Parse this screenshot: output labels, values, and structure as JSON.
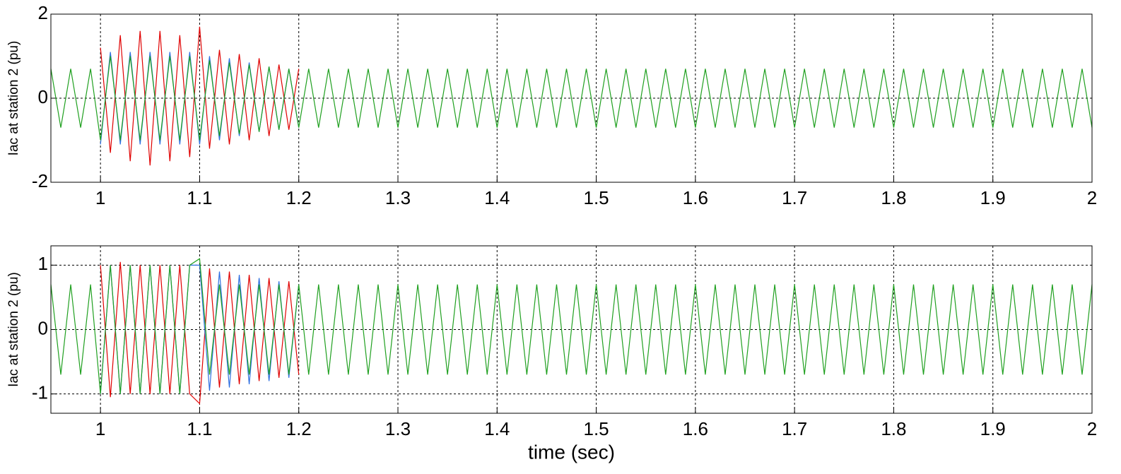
{
  "chart_data": [
    {
      "type": "line",
      "ylabel": "Iac at station 2 (pu)",
      "xlim": [
        0.95,
        2.0
      ],
      "xticks": [
        1,
        1.1,
        1.2,
        1.3,
        1.4,
        1.5,
        1.6,
        1.7,
        1.8,
        1.9,
        2
      ],
      "ylim": [
        -2,
        2
      ],
      "yticks": [
        -2,
        0,
        2
      ],
      "grid": true,
      "x": [
        0.95,
        0.96,
        0.97,
        0.98,
        0.99,
        1.0,
        1.01,
        1.02,
        1.03,
        1.04,
        1.05,
        1.06,
        1.07,
        1.08,
        1.09,
        1.1,
        1.11,
        1.12,
        1.13,
        1.14,
        1.15,
        1.16,
        1.17,
        1.18,
        1.19,
        1.2,
        1.21,
        1.22,
        1.23,
        1.24,
        1.25,
        1.26,
        1.27,
        1.28,
        1.29,
        1.3,
        1.31,
        1.32,
        1.33,
        1.34,
        1.35,
        1.36,
        1.37,
        1.38,
        1.39,
        1.4,
        1.41,
        1.42,
        1.43,
        1.44,
        1.45,
        1.46,
        1.47,
        1.48,
        1.49,
        1.5,
        1.51,
        1.52,
        1.53,
        1.54,
        1.55,
        1.56,
        1.57,
        1.58,
        1.59,
        1.6,
        1.61,
        1.62,
        1.63,
        1.64,
        1.65,
        1.66,
        1.67,
        1.68,
        1.69,
        1.7,
        1.71,
        1.72,
        1.73,
        1.74,
        1.75,
        1.76,
        1.77,
        1.78,
        1.79,
        1.8,
        1.81,
        1.82,
        1.83,
        1.84,
        1.85,
        1.86,
        1.87,
        1.88,
        1.89,
        1.9,
        1.91,
        1.92,
        1.93,
        1.94,
        1.95,
        1.96,
        1.97,
        1.98,
        1.99,
        2.0
      ],
      "series": [
        {
          "color": "#e00000",
          "x": [
            1.0,
            1.01,
            1.02,
            1.03,
            1.04,
            1.05,
            1.06,
            1.07,
            1.08,
            1.09,
            1.1,
            1.11,
            1.12,
            1.13,
            1.14,
            1.15,
            1.16,
            1.17,
            1.18,
            1.19,
            1.2
          ],
          "values": [
            1.2,
            -1.3,
            1.5,
            -1.5,
            1.6,
            -1.6,
            1.6,
            -1.5,
            1.5,
            -1.4,
            1.7,
            -1.2,
            1.15,
            -1.1,
            1.05,
            -1.0,
            0.95,
            -0.9,
            0.8,
            -0.75,
            0.7
          ]
        },
        {
          "color": "#3070e0",
          "x": [
            1.0,
            1.01,
            1.02,
            1.03,
            1.04,
            1.05,
            1.06,
            1.07,
            1.08,
            1.09,
            1.1,
            1.11,
            1.12,
            1.13,
            1.14,
            1.15,
            1.16,
            1.17,
            1.18,
            1.19,
            1.2
          ],
          "values": [
            -1.1,
            1.1,
            -1.1,
            1.1,
            -1.1,
            1.1,
            -1.1,
            1.1,
            -1.1,
            1.1,
            -1.1,
            1.0,
            -1.0,
            0.95,
            -0.9,
            0.85,
            -0.8,
            0.75,
            -0.75,
            0.7,
            -0.7
          ]
        },
        {
          "color": "#20a020",
          "values": [
            0.7,
            -0.7,
            0.7,
            -0.7,
            0.7,
            -1,
            1,
            -1,
            1,
            -1,
            1,
            -1,
            1,
            -1,
            1,
            -1,
            0.9,
            -0.9,
            0.85,
            -0.85,
            0.8,
            -0.8,
            0.75,
            -0.75,
            0.7,
            -0.7,
            0.7,
            -0.7,
            0.7,
            -0.7,
            0.7,
            -0.7,
            0.7,
            -0.7,
            0.7,
            -0.7,
            0.7,
            -0.7,
            0.7,
            -0.7,
            0.7,
            -0.7,
            0.7,
            -0.7,
            0.7,
            -0.7,
            0.7,
            -0.7,
            0.7,
            -0.7,
            0.7,
            -0.7,
            0.7,
            -0.7,
            0.7,
            -0.7,
            0.7,
            -0.7,
            0.7,
            -0.7,
            0.7,
            -0.7,
            0.7,
            -0.7,
            0.7,
            -0.7,
            0.7,
            -0.7,
            0.7,
            -0.7,
            0.7,
            -0.7,
            0.7,
            -0.7,
            0.7,
            -0.7,
            0.7,
            -0.7,
            0.7,
            -0.7,
            0.7,
            -0.7,
            0.7,
            -0.7,
            0.7,
            -0.7,
            0.7,
            -0.7,
            0.7,
            -0.7,
            0.7,
            -0.7,
            0.7,
            -0.7,
            0.7,
            -0.7,
            0.7,
            -0.7,
            0.7,
            -0.7,
            0.7,
            -0.7,
            0.7,
            -0.7,
            0.7,
            -0.7
          ]
        }
      ]
    },
    {
      "type": "line",
      "ylabel": "Iac at station 2 (pu)",
      "xlabel": "time (sec)",
      "xlim": [
        0.95,
        2.0
      ],
      "xticks": [
        1,
        1.1,
        1.2,
        1.3,
        1.4,
        1.5,
        1.6,
        1.7,
        1.8,
        1.9,
        2
      ],
      "ylim": [
        -1.3,
        1.3
      ],
      "yticks": [
        -1,
        0,
        1
      ],
      "grid": true,
      "x": [
        0.95,
        0.96,
        0.97,
        0.98,
        0.99,
        1.0,
        1.01,
        1.02,
        1.03,
        1.04,
        1.05,
        1.06,
        1.07,
        1.08,
        1.09,
        1.1,
        1.11,
        1.12,
        1.13,
        1.14,
        1.15,
        1.16,
        1.17,
        1.18,
        1.19,
        1.2,
        1.21,
        1.22,
        1.23,
        1.24,
        1.25,
        1.26,
        1.27,
        1.28,
        1.29,
        1.3,
        1.31,
        1.32,
        1.33,
        1.34,
        1.35,
        1.36,
        1.37,
        1.38,
        1.39,
        1.4,
        1.41,
        1.42,
        1.43,
        1.44,
        1.45,
        1.46,
        1.47,
        1.48,
        1.49,
        1.5,
        1.51,
        1.52,
        1.53,
        1.54,
        1.55,
        1.56,
        1.57,
        1.58,
        1.59,
        1.6,
        1.61,
        1.62,
        1.63,
        1.64,
        1.65,
        1.66,
        1.67,
        1.68,
        1.69,
        1.7,
        1.71,
        1.72,
        1.73,
        1.74,
        1.75,
        1.76,
        1.77,
        1.78,
        1.79,
        1.8,
        1.81,
        1.82,
        1.83,
        1.84,
        1.85,
        1.86,
        1.87,
        1.88,
        1.89,
        1.9,
        1.91,
        1.92,
        1.93,
        1.94,
        1.95,
        1.96,
        1.97,
        1.98,
        1.99,
        2.0
      ],
      "series": [
        {
          "color": "#e00000",
          "x": [
            1.0,
            1.01,
            1.02,
            1.03,
            1.04,
            1.05,
            1.06,
            1.07,
            1.08,
            1.09,
            1.1,
            1.11,
            1.12,
            1.13,
            1.14,
            1.15,
            1.16,
            1.17,
            1.18,
            1.19,
            1.2
          ],
          "values": [
            1.0,
            -1.05,
            1.05,
            -1.0,
            1.0,
            -1.0,
            1.0,
            -1.0,
            1.0,
            -1.0,
            -1.15,
            0.95,
            -0.9,
            0.9,
            -0.85,
            0.85,
            -0.8,
            0.8,
            -0.75,
            0.75,
            -0.7
          ]
        },
        {
          "color": "#3070e0",
          "x": [
            1.0,
            1.01,
            1.02,
            1.03,
            1.04,
            1.05,
            1.06,
            1.07,
            1.08,
            1.09,
            1.1,
            1.11,
            1.12,
            1.13,
            1.14,
            1.15,
            1.16,
            1.17,
            1.18,
            1.19,
            1.2
          ],
          "values": [
            -1.0,
            1.0,
            -1.0,
            1.0,
            -1.0,
            1.0,
            -1.0,
            1.0,
            -1.0,
            1.0,
            1.0,
            -0.95,
            0.9,
            -0.9,
            0.85,
            -0.85,
            0.8,
            -0.8,
            0.75,
            -0.75,
            0.7
          ]
        },
        {
          "color": "#20a020",
          "values": [
            0.7,
            -0.7,
            0.7,
            -0.7,
            0.7,
            -1,
            1,
            -1,
            1,
            -1,
            1,
            -1,
            1,
            -1,
            1,
            1.1,
            -0.7,
            0.7,
            -0.7,
            0.7,
            -0.7,
            0.7,
            -0.7,
            0.7,
            -0.7,
            0.7,
            -0.7,
            0.7,
            -0.7,
            0.7,
            -0.7,
            0.7,
            -0.7,
            0.7,
            -0.7,
            0.7,
            -0.7,
            0.7,
            -0.7,
            0.7,
            -0.7,
            0.7,
            -0.7,
            0.7,
            -0.7,
            0.7,
            -0.7,
            0.7,
            -0.7,
            0.7,
            -0.7,
            0.7,
            -0.7,
            0.7,
            -0.7,
            0.7,
            -0.7,
            0.7,
            -0.7,
            0.7,
            -0.7,
            0.7,
            -0.7,
            0.7,
            -0.7,
            0.7,
            -0.7,
            0.7,
            -0.7,
            0.7,
            -0.7,
            0.7,
            -0.7,
            0.7,
            -0.7,
            0.7,
            -0.7,
            0.7,
            -0.7,
            0.7,
            -0.7,
            0.7,
            -0.7,
            0.7,
            -0.7,
            0.7,
            -0.7,
            0.7,
            -0.7,
            0.7,
            -0.7,
            0.7,
            -0.7,
            0.7,
            -0.7,
            0.7,
            -0.7,
            0.7,
            -0.7,
            0.7,
            -0.7,
            0.7,
            -0.7,
            0.7,
            -0.7,
            0.7
          ]
        }
      ]
    }
  ]
}
